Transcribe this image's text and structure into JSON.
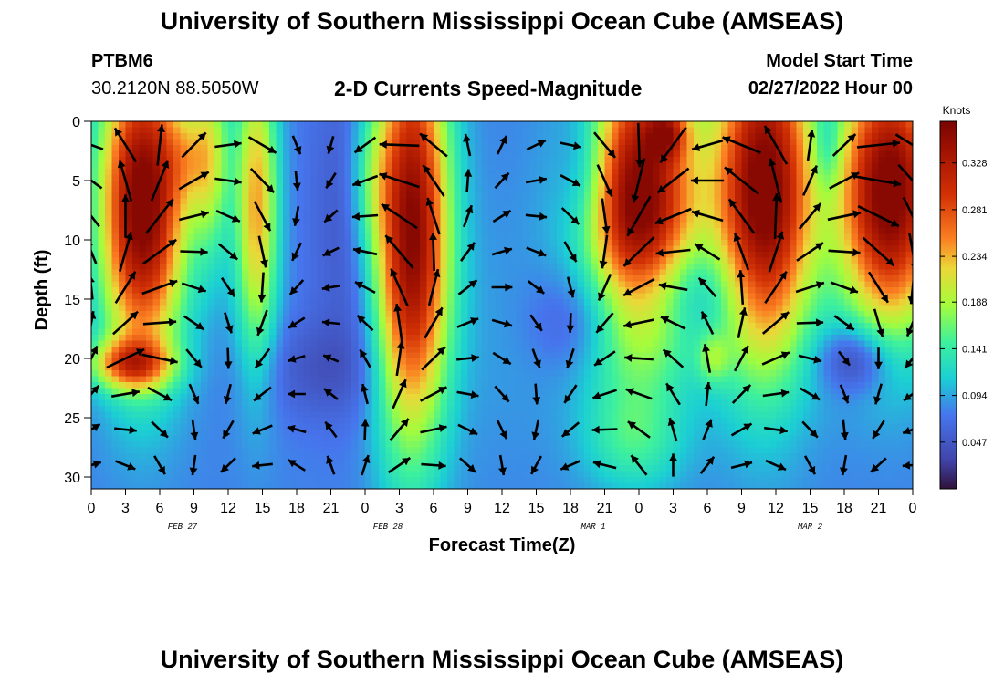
{
  "header": {
    "title": "University of Southern Mississippi Ocean Cube (AMSEAS)",
    "title_repeat": "University of Southern Mississippi Ocean Cube (AMSEAS)",
    "station": "PTBM6",
    "coords": "30.2120N  88.5050W",
    "subtitle": "2-D Currents Speed-Magnitude",
    "start_label": "Model Start Time",
    "start_value": "02/27/2022 Hour 00"
  },
  "chart_data": {
    "type": "heatmap",
    "title": "2-D Currents Speed-Magnitude",
    "xlabel": "Forecast Time(Z)",
    "ylabel": "Depth (ft)",
    "colorbar_label": "Knots",
    "xlim": [
      0,
      72
    ],
    "ylim": [
      31,
      0
    ],
    "x_tick_values": [
      0,
      3,
      6,
      9,
      12,
      15,
      18,
      21,
      24,
      27,
      30,
      33,
      36,
      39,
      42,
      45,
      48,
      51,
      54,
      57,
      60,
      63,
      66,
      69,
      72
    ],
    "x_tick_labels": [
      "0",
      "3",
      "6",
      "9",
      "12",
      "15",
      "18",
      "21",
      "0",
      "3",
      "6",
      "9",
      "12",
      "15",
      "18",
      "21",
      "0",
      "3",
      "6",
      "9",
      "12",
      "15",
      "18",
      "21",
      "0"
    ],
    "date_labels": [
      {
        "x": 8,
        "text": "FEB 27"
      },
      {
        "x": 26,
        "text": "FEB 28"
      },
      {
        "x": 44,
        "text": "MAR 1"
      },
      {
        "x": 63,
        "text": "MAR 2"
      }
    ],
    "y_ticks": [
      0,
      5,
      10,
      15,
      20,
      25,
      30
    ],
    "colorbar_ticks": [
      0.047,
      0.094,
      0.141,
      0.188,
      0.234,
      0.281,
      0.328
    ],
    "colorbar_range": [
      0.0,
      0.37
    ],
    "speed_field": {
      "background": 0.08,
      "blobs": [
        {
          "t": 4.5,
          "d": 7,
          "st": 2.6,
          "sd": 9,
          "v": 0.3
        },
        {
          "t": 8.5,
          "d": 3,
          "st": 1.5,
          "sd": 3,
          "v": 0.06
        },
        {
          "t": 3.5,
          "d": 20.5,
          "st": 2.5,
          "sd": 1.5,
          "v": 0.16
        },
        {
          "t": 10.5,
          "d": 3,
          "st": 1.2,
          "sd": 6,
          "v": 0.1
        },
        {
          "t": 14.5,
          "d": 7,
          "st": 1.3,
          "sd": 9,
          "v": 0.16
        },
        {
          "t": 24.5,
          "d": 5,
          "st": 1.4,
          "sd": 5,
          "v": 0.06
        },
        {
          "t": 24,
          "d": 8,
          "st": 3,
          "sd": 10,
          "v": -0.05
        },
        {
          "t": 28,
          "d": 9,
          "st": 2.3,
          "sd": 12,
          "v": 0.3
        },
        {
          "t": 43.5,
          "d": 4,
          "st": 1.8,
          "sd": 5,
          "v": -0.06
        },
        {
          "t": 48,
          "d": 7,
          "st": 3.5,
          "sd": 9,
          "v": 0.3
        },
        {
          "t": 43,
          "d": 17,
          "st": 3,
          "sd": 3,
          "v": -0.04
        },
        {
          "t": 50.5,
          "d": 14,
          "st": 5,
          "sd": 3,
          "v": -0.06
        },
        {
          "t": 50.5,
          "d": 1,
          "st": 1.2,
          "sd": 1.5,
          "v": 0.1
        },
        {
          "t": 54.5,
          "d": 20,
          "st": 1,
          "sd": 1.5,
          "v": 0.06
        },
        {
          "t": 59,
          "d": 6,
          "st": 3,
          "sd": 10,
          "v": 0.3
        },
        {
          "t": 70,
          "d": 6,
          "st": 3.2,
          "sd": 8,
          "v": 0.3
        },
        {
          "t": 64.5,
          "d": 2,
          "st": 1,
          "sd": 3,
          "v": -0.05
        },
        {
          "t": 67,
          "d": 20,
          "st": 2.2,
          "sd": 2,
          "v": -0.07
        },
        {
          "t": 20,
          "d": 21,
          "st": 4,
          "sd": 3,
          "v": -0.03
        },
        {
          "t": 47.5,
          "d": 27,
          "st": 3,
          "sd": 3,
          "v": 0.05
        },
        {
          "t": 36,
          "d": 18,
          "st": 6,
          "sd": 8,
          "v": 0.01
        }
      ]
    },
    "vector_times": [
      0,
      3,
      6,
      9,
      12,
      15,
      18,
      21,
      24,
      27,
      30,
      33,
      36,
      39,
      42,
      45,
      48,
      51,
      54,
      57,
      60,
      63,
      66,
      69,
      72
    ],
    "vector_depths": [
      2,
      5,
      8,
      11,
      14,
      17,
      20,
      23,
      26,
      29
    ],
    "vector_pattern": {
      "base_direction_deg": 200,
      "depth_turn_deg": 16,
      "time_turn_deg": 38
    }
  }
}
